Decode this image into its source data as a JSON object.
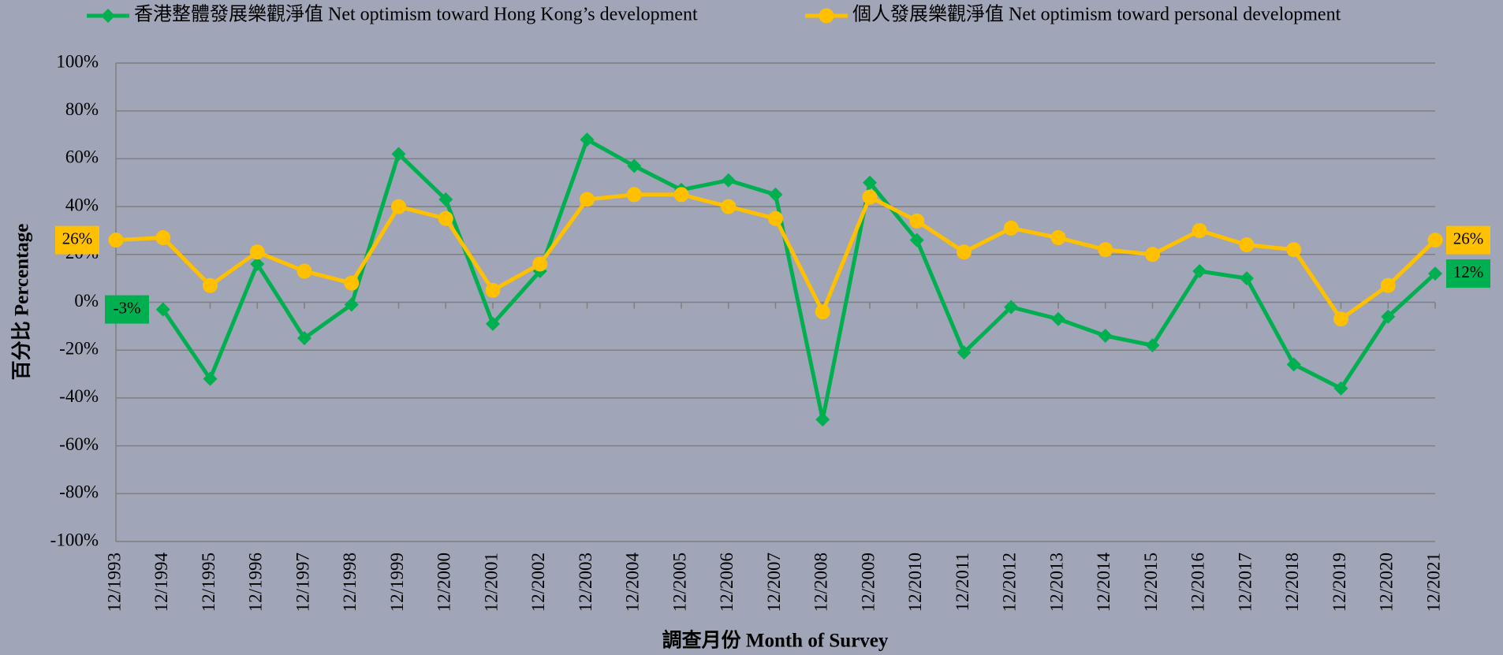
{
  "chart_data": {
    "type": "line",
    "x_label": "調查月份 Month of Survey",
    "y_label": "百分比 Percentage",
    "categories": [
      "12/1993",
      "12/1994",
      "12/1995",
      "12/1996",
      "12/1997",
      "12/1998",
      "12/1999",
      "12/2000",
      "12/2001",
      "12/2002",
      "12/2003",
      "12/2004",
      "12/2005",
      "12/2006",
      "12/2007",
      "12/2008",
      "12/2009",
      "12/2010",
      "12/2011",
      "12/2012",
      "12/2013",
      "12/2014",
      "12/2015",
      "12/2016",
      "12/2017",
      "12/2018",
      "12/2019",
      "12/2020",
      "12/2021"
    ],
    "series": [
      {
        "name": "香港整體發展樂觀淨值 Net optimism toward Hong Kong’s development",
        "color": "#00b050",
        "marker": "diamond",
        "values": [
          null,
          -3,
          -32,
          16,
          -15,
          -1,
          62,
          43,
          -9,
          13,
          68,
          57,
          47,
          51,
          45,
          -49,
          50,
          26,
          -21,
          -2,
          -7,
          -14,
          -18,
          13,
          10,
          -26,
          -36,
          -6,
          12
        ],
        "value_labels": [
          null,
          "-3%",
          null,
          null,
          null,
          null,
          null,
          null,
          null,
          null,
          null,
          null,
          null,
          null,
          null,
          null,
          null,
          null,
          null,
          null,
          null,
          null,
          null,
          null,
          null,
          null,
          null,
          null,
          "12%"
        ]
      },
      {
        "name": "個人發展樂觀淨值 Net optimism toward personal development",
        "color": "#ffc000",
        "marker": "circle",
        "values": [
          26,
          27,
          7,
          21,
          13,
          8,
          40,
          35,
          5,
          16,
          43,
          45,
          45,
          40,
          35,
          -4,
          44,
          34,
          21,
          31,
          27,
          22,
          20,
          30,
          24,
          22,
          -7,
          7,
          26
        ],
        "value_labels": [
          "26%",
          null,
          null,
          null,
          null,
          null,
          null,
          null,
          null,
          null,
          null,
          null,
          null,
          null,
          null,
          null,
          null,
          null,
          null,
          null,
          null,
          null,
          null,
          null,
          null,
          null,
          null,
          null,
          "26%"
        ]
      }
    ],
    "ylim": [
      -100,
      100
    ],
    "yticks": [
      {
        "value": -100,
        "label": "-100%"
      },
      {
        "value": -80,
        "label": "-80%"
      },
      {
        "value": -60,
        "label": "-60%"
      },
      {
        "value": -40,
        "label": "-40%"
      },
      {
        "value": -20,
        "label": "-20%"
      },
      {
        "value": 0,
        "label": "0%"
      },
      {
        "value": 20,
        "label": "20%"
      },
      {
        "value": 40,
        "label": "40%"
      },
      {
        "value": 60,
        "label": "60%"
      },
      {
        "value": 80,
        "label": "80%"
      },
      {
        "value": 100,
        "label": "100%"
      }
    ],
    "grid": true,
    "legend": "top"
  }
}
